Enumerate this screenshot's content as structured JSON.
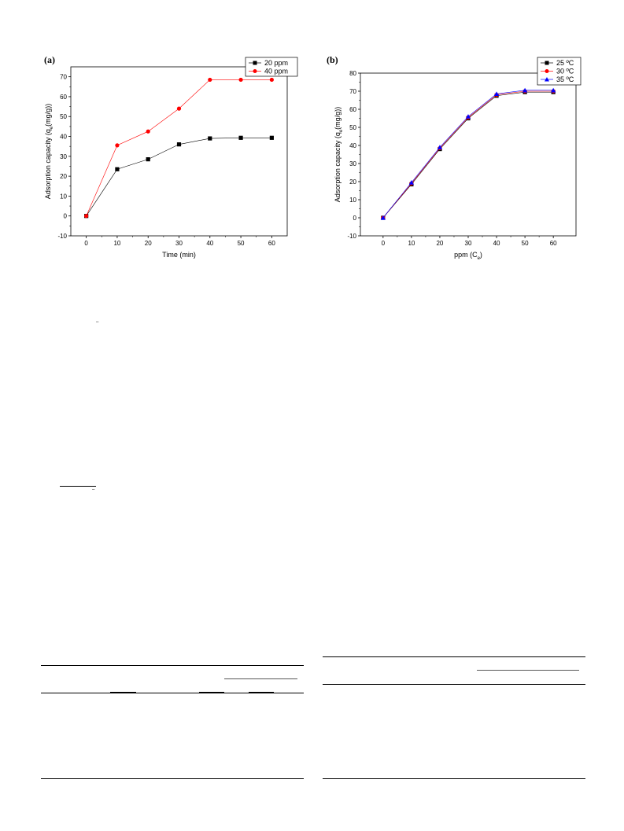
{
  "chart_data": [
    {
      "type": "line",
      "panel_label": "(a)",
      "xlabel": "Time (min)",
      "ylabel": "Adsorption capacity (q_e(mg/g))",
      "ylabel_main": "Adsorption capacity (q",
      "ylabel_sub": "e",
      "ylabel_tail": "(mg/g))",
      "xlim": [
        -5,
        65
      ],
      "ylim": [
        -10,
        75
      ],
      "xticks": [
        0,
        10,
        20,
        30,
        40,
        50,
        60
      ],
      "yticks": [
        -10,
        0,
        10,
        20,
        30,
        40,
        50,
        60,
        70
      ],
      "legend_position": "top-right",
      "series": [
        {
          "name": "20 ppm",
          "color": "#000000",
          "marker": "square",
          "x": [
            0,
            10,
            20,
            30,
            40,
            50,
            60
          ],
          "y": [
            0,
            23.5,
            28.5,
            36,
            39,
            39.3,
            39.3
          ]
        },
        {
          "name": "40 ppm",
          "color": "#ff0000",
          "marker": "circle",
          "x": [
            0,
            10,
            20,
            30,
            40,
            50,
            60
          ],
          "y": [
            0,
            35.5,
            42.5,
            54,
            68.5,
            68.5,
            68.5
          ]
        }
      ]
    },
    {
      "type": "line",
      "panel_label": "(b)",
      "xlabel": "ppm (C_e)",
      "xlabel_main": "ppm (C",
      "xlabel_sub": "e",
      "xlabel_tail": ")",
      "ylabel": "Adsorption capacity (q_e(mg/g))",
      "ylabel_main": "Adsorption capacity (q",
      "ylabel_sub": "e",
      "ylabel_tail": "(mg/g))",
      "xlim": [
        -8,
        68
      ],
      "ylim": [
        -10,
        80
      ],
      "xticks": [
        0,
        10,
        20,
        30,
        40,
        50,
        60
      ],
      "yticks": [
        -10,
        0,
        10,
        20,
        30,
        40,
        50,
        60,
        70,
        80
      ],
      "legend_position": "top-right",
      "series": [
        {
          "name": "25 ºC",
          "color": "#000000",
          "marker": "square",
          "x": [
            0,
            10,
            20,
            30,
            40,
            50,
            60
          ],
          "y": [
            0,
            18.5,
            38,
            55,
            67.5,
            69.5,
            69.5
          ]
        },
        {
          "name": "30 ºC",
          "color": "#ff0000",
          "marker": "circle",
          "x": [
            0,
            10,
            20,
            30,
            40,
            50,
            60
          ],
          "y": [
            0,
            19,
            38.5,
            55.5,
            68,
            70,
            70
          ]
        },
        {
          "name": "35 ºC",
          "color": "#0000ff",
          "marker": "triangle",
          "x": [
            0,
            10,
            20,
            30,
            40,
            50,
            60
          ],
          "y": [
            0,
            19.5,
            39,
            56,
            68.5,
            70.5,
            70.5
          ]
        }
      ]
    }
  ],
  "stray_marks": [
    "–",
    "–",
    "–"
  ]
}
